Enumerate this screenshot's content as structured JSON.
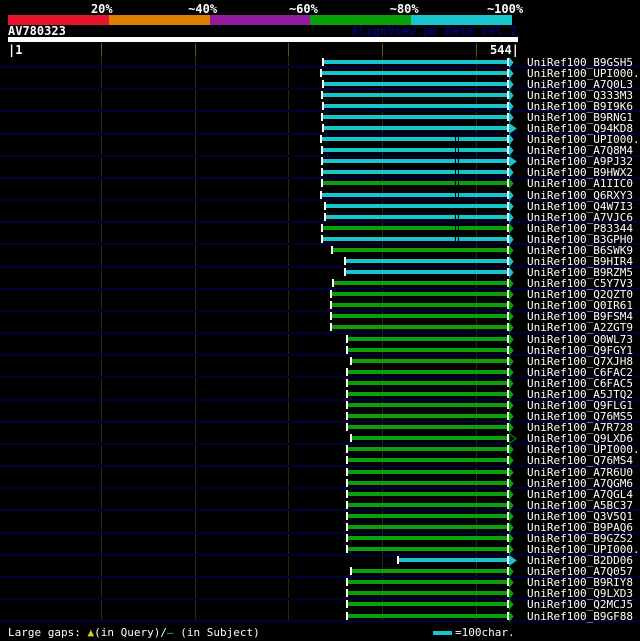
{
  "header": {
    "query_id": "AV780323",
    "watermark": "AlignView.pm Beta rel.7"
  },
  "scale": {
    "segments": [
      {
        "label": "20%",
        "color": "#e6152d"
      },
      {
        "label": "~40%",
        "color": "#dc7e00"
      },
      {
        "label": "~60%",
        "color": "#911d9e"
      },
      {
        "label": "~80%",
        "color": "#0aa00a"
      },
      {
        "label": "~100%",
        "color": "#18c5cd"
      }
    ]
  },
  "ruler": {
    "start_label": "|1",
    "end_label": "544|"
  },
  "footer": {
    "prefix": "Large gaps: ",
    "query_marker": "▲",
    "query_text": "(in Query)/",
    "subject_marker": "—",
    "subject_text": " (in Subject)",
    "legend_text": "=100char."
  },
  "colors": {
    "cyan": "#18c5cd",
    "green": "#0aa00a",
    "navy_line": "#00003c",
    "grid": "#2b2b06",
    "ruler_tick": "#565610",
    "yellow": "#d8d800",
    "watermark_text": "#000074",
    "background": "#000000"
  },
  "chart_data": {
    "type": "bar",
    "title": "AV780323",
    "xlabel": "Query position",
    "xlim": [
      1,
      544
    ],
    "x_gridlines": [
      100,
      200,
      300,
      400,
      500
    ],
    "legend": {
      "bar_unit": "=100char.",
      "identity_buckets": [
        "20%",
        "~40%",
        "~60%",
        "~80%",
        "~100%"
      ]
    },
    "hits": [
      {
        "id": "UniRef100_B9GSH5",
        "bucket": "~100%",
        "color_key": "cyan",
        "qstart": 338,
        "qbar_end": 533,
        "tip": 541,
        "gaps": [],
        "hollow": false
      },
      {
        "id": "UniRef100_UPI000..",
        "bucket": "~100%",
        "color_key": "cyan",
        "qstart": 336,
        "qbar_end": 533,
        "tip": 541,
        "gaps": [],
        "hollow": false
      },
      {
        "id": "UniRef100_A7Q0L3",
        "bucket": "~100%",
        "color_key": "cyan",
        "qstart": 338,
        "qbar_end": 533,
        "tip": 541,
        "gaps": [],
        "hollow": false
      },
      {
        "id": "UniRef100_Q333M3",
        "bucket": "~100%",
        "color_key": "cyan",
        "qstart": 337,
        "qbar_end": 533,
        "tip": 541,
        "gaps": [],
        "hollow": false
      },
      {
        "id": "UniRef100_B9I9K6",
        "bucket": "~100%",
        "color_key": "cyan",
        "qstart": 338,
        "qbar_end": 533,
        "tip": 541,
        "gaps": [],
        "hollow": false
      },
      {
        "id": "UniRef100_B9RNG1",
        "bucket": "~100%",
        "color_key": "cyan",
        "qstart": 337,
        "qbar_end": 533,
        "tip": 541,
        "gaps": [],
        "hollow": false
      },
      {
        "id": "UniRef100_Q94KD8",
        "bucket": "~100%",
        "color_key": "cyan",
        "qstart": 338,
        "qbar_end": 533,
        "tip": 544,
        "gaps": [],
        "hollow": false
      },
      {
        "id": "UniRef100_UPI000..",
        "bucket": "~100%",
        "color_key": "cyan",
        "qstart": 336,
        "qbar_end": 533,
        "tip": 541,
        "gaps": [
          478
        ],
        "hollow": false
      },
      {
        "id": "UniRef100_A7Q8M4",
        "bucket": "~100%",
        "color_key": "cyan",
        "qstart": 337,
        "qbar_end": 533,
        "tip": 541,
        "gaps": [
          478
        ],
        "hollow": false
      },
      {
        "id": "UniRef100_A9PJ32",
        "bucket": "~100%",
        "color_key": "cyan",
        "qstart": 337,
        "qbar_end": 533,
        "tip": 544,
        "gaps": [
          478
        ],
        "hollow": false
      },
      {
        "id": "UniRef100_B9HWX2",
        "bucket": "~100%",
        "color_key": "cyan",
        "qstart": 337,
        "qbar_end": 533,
        "tip": 541,
        "gaps": [
          478
        ],
        "hollow": false
      },
      {
        "id": "UniRef100_A1IIC0",
        "bucket": "~80%",
        "color_key": "green",
        "qstart": 337,
        "qbar_end": 533,
        "tip": 541,
        "gaps": [
          478
        ],
        "hollow": false
      },
      {
        "id": "UniRef100_Q6RXY3",
        "bucket": "~100%",
        "color_key": "cyan",
        "qstart": 336,
        "qbar_end": 533,
        "tip": 541,
        "gaps": [
          478
        ],
        "hollow": false
      },
      {
        "id": "UniRef100_Q4W7I3",
        "bucket": "~100%",
        "color_key": "cyan",
        "qstart": 340,
        "qbar_end": 533,
        "tip": 541,
        "gaps": [],
        "hollow": false
      },
      {
        "id": "UniRef100_A7VJC6",
        "bucket": "~100%",
        "color_key": "cyan",
        "qstart": 340,
        "qbar_end": 533,
        "tip": 541,
        "gaps": [
          478
        ],
        "hollow": false
      },
      {
        "id": "UniRef100_P83344",
        "bucket": "~80%",
        "color_key": "green",
        "qstart": 337,
        "qbar_end": 533,
        "tip": 541,
        "gaps": [
          478
        ],
        "hollow": false
      },
      {
        "id": "UniRef100_B3GPH0",
        "bucket": "~100%",
        "color_key": "cyan",
        "qstart": 337,
        "qbar_end": 533,
        "tip": 541,
        "gaps": [
          478
        ],
        "hollow": false
      },
      {
        "id": "UniRef100_B6SWK9",
        "bucket": "~80%",
        "color_key": "green",
        "qstart": 348,
        "qbar_end": 533,
        "tip": 541,
        "gaps": [],
        "hollow": false
      },
      {
        "id": "UniRef100_B9HIR4",
        "bucket": "~100%",
        "color_key": "cyan",
        "qstart": 361,
        "qbar_end": 533,
        "tip": 541,
        "gaps": [],
        "hollow": false
      },
      {
        "id": "UniRef100_B9RZM5",
        "bucket": "~100%",
        "color_key": "cyan",
        "qstart": 362,
        "qbar_end": 533,
        "tip": 541,
        "gaps": [],
        "hollow": false
      },
      {
        "id": "UniRef100_C5Y7V3",
        "bucket": "~80%",
        "color_key": "green",
        "qstart": 349,
        "qbar_end": 533,
        "tip": 541,
        "gaps": [],
        "hollow": false
      },
      {
        "id": "UniRef100_Q2QZT0",
        "bucket": "~80%",
        "color_key": "green",
        "qstart": 347,
        "qbar_end": 533,
        "tip": 541,
        "gaps": [],
        "hollow": false
      },
      {
        "id": "UniRef100_Q0IR61",
        "bucket": "~80%",
        "color_key": "green",
        "qstart": 347,
        "qbar_end": 533,
        "tip": 541,
        "gaps": [],
        "hollow": false
      },
      {
        "id": "UniRef100_B9FSM4",
        "bucket": "~80%",
        "color_key": "green",
        "qstart": 347,
        "qbar_end": 533,
        "tip": 541,
        "gaps": [],
        "hollow": false
      },
      {
        "id": "UniRef100_A2ZGT9",
        "bucket": "~80%",
        "color_key": "green",
        "qstart": 347,
        "qbar_end": 533,
        "tip": 541,
        "gaps": [],
        "hollow": false
      },
      {
        "id": "UniRef100_Q0WL73",
        "bucket": "~80%",
        "color_key": "green",
        "qstart": 364,
        "qbar_end": 533,
        "tip": 541,
        "gaps": [],
        "hollow": false
      },
      {
        "id": "UniRef100_Q9FGY1",
        "bucket": "~80%",
        "color_key": "green",
        "qstart": 364,
        "qbar_end": 533,
        "tip": 541,
        "gaps": [],
        "hollow": false
      },
      {
        "id": "UniRef100_Q7XJH8",
        "bucket": "~80%",
        "color_key": "green",
        "qstart": 368,
        "qbar_end": 533,
        "tip": 541,
        "gaps": [],
        "hollow": false
      },
      {
        "id": "UniRef100_C6FAC2",
        "bucket": "~80%",
        "color_key": "green",
        "qstart": 364,
        "qbar_end": 533,
        "tip": 541,
        "gaps": [],
        "hollow": false
      },
      {
        "id": "UniRef100_C6FAC5",
        "bucket": "~80%",
        "color_key": "green",
        "qstart": 364,
        "qbar_end": 533,
        "tip": 541,
        "gaps": [],
        "hollow": false
      },
      {
        "id": "UniRef100_A5JTQ2",
        "bucket": "~80%",
        "color_key": "green",
        "qstart": 364,
        "qbar_end": 533,
        "tip": 541,
        "gaps": [],
        "hollow": false
      },
      {
        "id": "UniRef100_Q9FLG1",
        "bucket": "~80%",
        "color_key": "green",
        "qstart": 364,
        "qbar_end": 533,
        "tip": 541,
        "gaps": [],
        "hollow": false
      },
      {
        "id": "UniRef100_Q76MS5",
        "bucket": "~80%",
        "color_key": "green",
        "qstart": 364,
        "qbar_end": 533,
        "tip": 541,
        "gaps": [],
        "hollow": false
      },
      {
        "id": "UniRef100_A7R728",
        "bucket": "~80%",
        "color_key": "green",
        "qstart": 364,
        "qbar_end": 533,
        "tip": 541,
        "gaps": [],
        "hollow": false
      },
      {
        "id": "UniRef100_Q9LXD6",
        "bucket": "~80%",
        "color_key": "green",
        "qstart": 368,
        "qbar_end": 533,
        "tip": 544,
        "gaps": [],
        "hollow": true
      },
      {
        "id": "UniRef100_UPI000..",
        "bucket": "~80%",
        "color_key": "green",
        "qstart": 364,
        "qbar_end": 533,
        "tip": 541,
        "gaps": [],
        "hollow": false
      },
      {
        "id": "UniRef100_Q76MS4",
        "bucket": "~80%",
        "color_key": "green",
        "qstart": 364,
        "qbar_end": 533,
        "tip": 541,
        "gaps": [],
        "hollow": false
      },
      {
        "id": "UniRef100_A7R6U0",
        "bucket": "~80%",
        "color_key": "green",
        "qstart": 364,
        "qbar_end": 533,
        "tip": 541,
        "gaps": [],
        "hollow": false
      },
      {
        "id": "UniRef100_A7QGM6",
        "bucket": "~80%",
        "color_key": "green",
        "qstart": 364,
        "qbar_end": 533,
        "tip": 541,
        "gaps": [],
        "hollow": false
      },
      {
        "id": "UniRef100_A7QGL4",
        "bucket": "~80%",
        "color_key": "green",
        "qstart": 364,
        "qbar_end": 533,
        "tip": 541,
        "gaps": [],
        "hollow": false
      },
      {
        "id": "UniRef100_A5BC37",
        "bucket": "~80%",
        "color_key": "green",
        "qstart": 364,
        "qbar_end": 533,
        "tip": 541,
        "gaps": [],
        "hollow": false
      },
      {
        "id": "UniRef100_Q3V5Q1",
        "bucket": "~80%",
        "color_key": "green",
        "qstart": 364,
        "qbar_end": 533,
        "tip": 541,
        "gaps": [],
        "hollow": false
      },
      {
        "id": "UniRef100_B9PAQ6",
        "bucket": "~80%",
        "color_key": "green",
        "qstart": 364,
        "qbar_end": 533,
        "tip": 541,
        "gaps": [],
        "hollow": false
      },
      {
        "id": "UniRef100_B9GZS2",
        "bucket": "~80%",
        "color_key": "green",
        "qstart": 364,
        "qbar_end": 533,
        "tip": 541,
        "gaps": [],
        "hollow": false
      },
      {
        "id": "UniRef100_UPI000..",
        "bucket": "~80%",
        "color_key": "green",
        "qstart": 364,
        "qbar_end": 533,
        "tip": 541,
        "gaps": [],
        "hollow": false
      },
      {
        "id": "UniRef100_B2DD06",
        "bucket": "~100%",
        "color_key": "cyan",
        "qstart": 418,
        "qbar_end": 533,
        "tip": 544,
        "gaps": [],
        "hollow": false
      },
      {
        "id": "UniRef100_A7Q057",
        "bucket": "~80%",
        "color_key": "green",
        "qstart": 368,
        "qbar_end": 533,
        "tip": 541,
        "gaps": [],
        "hollow": false
      },
      {
        "id": "UniRef100_B9RIY8",
        "bucket": "~80%",
        "color_key": "green",
        "qstart": 364,
        "qbar_end": 533,
        "tip": 541,
        "gaps": [],
        "hollow": false
      },
      {
        "id": "UniRef100_Q9LXD3",
        "bucket": "~80%",
        "color_key": "green",
        "qstart": 364,
        "qbar_end": 533,
        "tip": 541,
        "gaps": [],
        "hollow": false
      },
      {
        "id": "UniRef100_Q2MCJ5",
        "bucket": "~80%",
        "color_key": "green",
        "qstart": 364,
        "qbar_end": 533,
        "tip": 541,
        "gaps": [],
        "hollow": false
      },
      {
        "id": "UniRef100_B9GF88",
        "bucket": "~80%",
        "color_key": "green",
        "qstart": 364,
        "qbar_end": 533,
        "tip": 541,
        "gaps": [],
        "hollow": false
      }
    ]
  }
}
